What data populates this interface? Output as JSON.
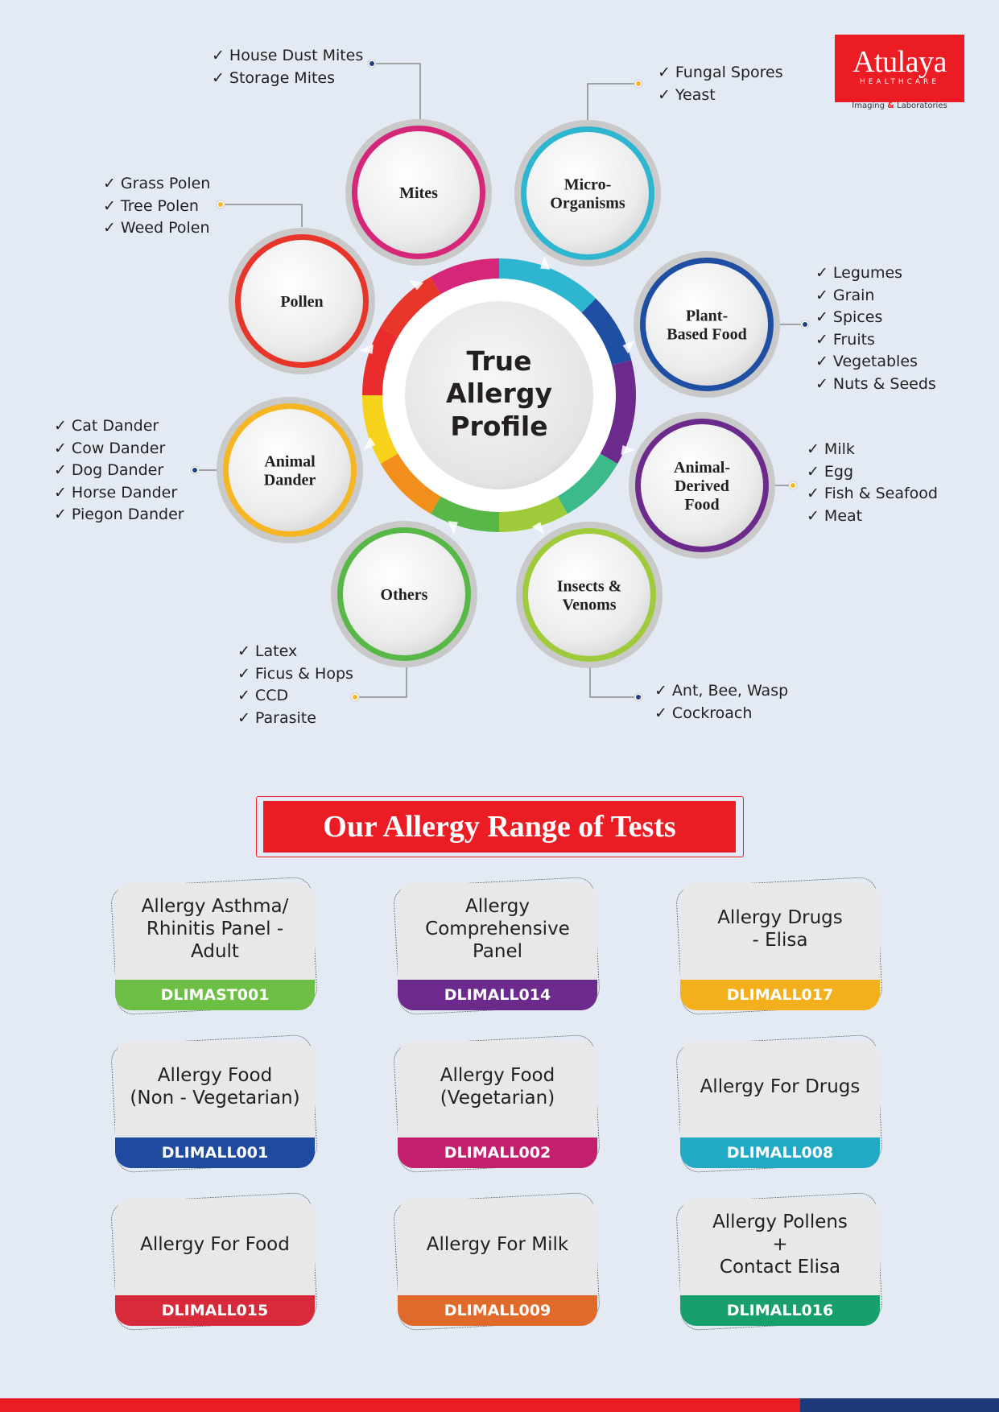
{
  "logo": {
    "brand": "Atulaya",
    "sub": "HEALTHCARE",
    "tagline_pre": "Imaging ",
    "tagline_amp": "&",
    "tagline_post": " Laboratories"
  },
  "center": {
    "line1": "True",
    "line2": "Allergy",
    "line3": "Profile"
  },
  "nodes": [
    {
      "id": "mites",
      "label": [
        "Mites"
      ],
      "color": "#d6267a",
      "items": [
        "House Dust Mites",
        "Storage Mites"
      ]
    },
    {
      "id": "micro",
      "label": [
        "Micro-",
        "Organisms"
      ],
      "color": "#2eb6d1",
      "items": [
        "Fungal Spores",
        "Yeast"
      ]
    },
    {
      "id": "plant",
      "label": [
        "Plant-",
        "Based Food"
      ],
      "color": "#1f4fa3",
      "items": [
        "Legumes",
        "Grain",
        "Spices",
        "Fruits",
        "Vegetables",
        "Nuts & Seeds"
      ]
    },
    {
      "id": "animal-food",
      "label": [
        "Animal-",
        "Derived",
        "Food"
      ],
      "color": "#6b2a8c",
      "items": [
        "Milk",
        "Egg",
        "Fish & Seafood",
        "Meat"
      ]
    },
    {
      "id": "insects",
      "label": [
        "Insects &",
        "Venoms"
      ],
      "color": "#9fcb3a",
      "items": [
        "Ant, Bee, Wasp",
        "Cockroach"
      ]
    },
    {
      "id": "others",
      "label": [
        "Others"
      ],
      "color": "#58b847",
      "items": [
        "Latex",
        "Ficus & Hops",
        "CCD",
        "Parasite"
      ]
    },
    {
      "id": "dander",
      "label": [
        "Animal",
        "Dander"
      ],
      "color": "#f4b623",
      "items": [
        "Cat Dander",
        "Cow Dander",
        "Dog Dander",
        "Horse Dander",
        "Piegon Dander"
      ]
    },
    {
      "id": "pollen",
      "label": [
        "Pollen"
      ],
      "color": "#e8352a",
      "items": [
        "Grass Polen",
        "Tree Polen",
        "Weed Polen"
      ]
    }
  ],
  "banner": {
    "title": "Our Allergy Range of Tests"
  },
  "tests": [
    {
      "name": "Allergy Asthma/\nRhinitis Panel - Adult",
      "code": "DLIMAST001",
      "color": "#6dbe45"
    },
    {
      "name": "Allergy\nComprehensive\nPanel",
      "code": "DLIMALL014",
      "color": "#6b2a8c"
    },
    {
      "name": "Allergy Drugs\n- Elisa",
      "code": "DLIMALL017",
      "color": "#f4b01c"
    },
    {
      "name": "Allergy Food\n(Non - Vegetarian)",
      "code": "DLIMALL001",
      "color": "#1e4aa0"
    },
    {
      "name": "Allergy Food\n(Vegetarian)",
      "code": "DLIMALL002",
      "color": "#c2206e"
    },
    {
      "name": "Allergy For Drugs",
      "code": "DLIMALL008",
      "color": "#22a9c4"
    },
    {
      "name": "Allergy For Food",
      "code": "DLIMALL015",
      "color": "#d72a3a"
    },
    {
      "name": "Allergy For Milk",
      "code": "DLIMALL009",
      "color": "#e06a2a"
    },
    {
      "name": "Allergy Pollens\n+\nContact Elisa",
      "code": "DLIMALL016",
      "color": "#17a06c"
    }
  ]
}
